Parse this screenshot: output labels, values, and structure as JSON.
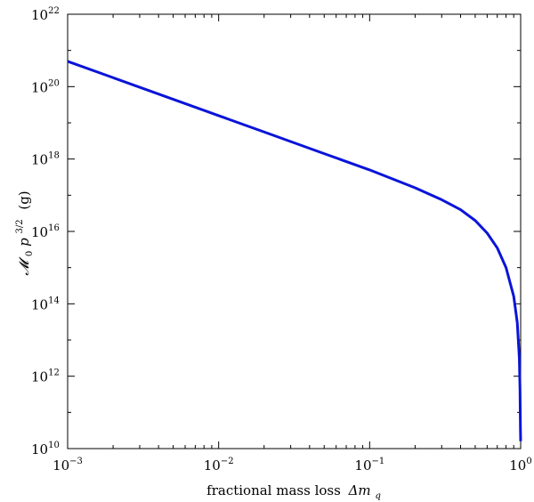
{
  "chart_data": {
    "type": "line",
    "xscale": "log",
    "yscale": "log",
    "xlim": [
      0.001,
      1
    ],
    "ylim": [
      10000000000.0,
      1e+22
    ],
    "grid": false,
    "legend": "none",
    "xlabel": {
      "text": "fractional mass loss",
      "symbol": "Δm",
      "subscript": "q"
    },
    "ylabel": {
      "symbol": "𝓜",
      "sub": "0",
      "var": "p",
      "exponent": "3/2",
      "unit": "(g)"
    },
    "x_ticks": [
      {
        "value": 0.001,
        "base": "10",
        "exp": "−3"
      },
      {
        "value": 0.01,
        "base": "10",
        "exp": "−2"
      },
      {
        "value": 0.1,
        "base": "10",
        "exp": "−1"
      },
      {
        "value": 1,
        "base": "10",
        "exp": "0"
      }
    ],
    "y_ticks": [
      {
        "value": 10000000000.0,
        "base": "10",
        "exp": "10"
      },
      {
        "value": 1000000000000.0,
        "base": "10",
        "exp": "12"
      },
      {
        "value": 100000000000000.0,
        "base": "10",
        "exp": "14"
      },
      {
        "value": 1e+16,
        "base": "10",
        "exp": "16"
      },
      {
        "value": 1e+18,
        "base": "10",
        "exp": "18"
      },
      {
        "value": 1e+20,
        "base": "10",
        "exp": "20"
      },
      {
        "value": 1e+22,
        "base": "10",
        "exp": "22"
      }
    ],
    "series": [
      {
        "color": "#0a14d8",
        "points": [
          [
            0.001,
            5e+20
          ],
          [
            0.002,
            1.77e+20
          ],
          [
            0.005,
            4.47e+19
          ],
          [
            0.01,
            1.58e+19
          ],
          [
            0.02,
            5.6e+18
          ],
          [
            0.05,
            1.41e+18
          ],
          [
            0.1,
            5e+17
          ],
          [
            0.2,
            1.6e+17
          ],
          [
            0.3,
            7.5e+16
          ],
          [
            0.4,
            4e+16
          ],
          [
            0.5,
            2e+16
          ],
          [
            0.6,
            9000000000000000.0
          ],
          [
            0.7,
            3500000000000000.0
          ],
          [
            0.8,
            1000000000000000.0
          ],
          [
            0.9,
            160000000000000.0
          ],
          [
            0.95,
            30000000000000.0
          ],
          [
            0.98,
            3200000000000.0
          ],
          [
            0.99,
            450000000000.0
          ],
          [
            0.997,
            32000000000.0
          ],
          [
            1.0,
            16000000000.0
          ]
        ]
      }
    ]
  }
}
